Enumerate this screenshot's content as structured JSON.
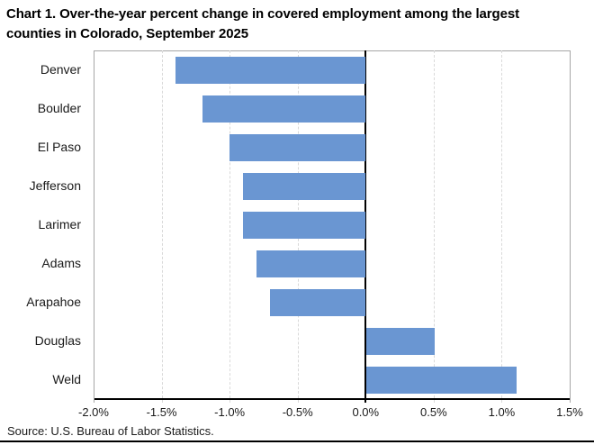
{
  "chart_data": {
    "type": "bar",
    "orientation": "horizontal",
    "title": "Chart 1. Over-the-year percent change in covered employment among the largest counties in Colorado, September 2025",
    "categories": [
      "Denver",
      "Boulder",
      "El Paso",
      "Jefferson",
      "Larimer",
      "Adams",
      "Arapahoe",
      "Douglas",
      "Weld"
    ],
    "values": [
      -1.4,
      -1.2,
      -1.0,
      -0.9,
      -0.9,
      -0.8,
      -0.7,
      0.5,
      1.1
    ],
    "unit": "percent",
    "xlabel": "",
    "ylabel": "",
    "xlim": [
      -2.0,
      1.5
    ],
    "x_tick_step": 0.5,
    "x_tick_labels": [
      "-2.0%",
      "-1.5%",
      "-1.0%",
      "-0.5%",
      "0.0%",
      "0.5%",
      "1.0%",
      "1.5%"
    ],
    "grid": "vertical-dashed",
    "legend": "none",
    "colors": {
      "bar": "#6a96d2",
      "gridline": "#d9d9d9",
      "plot_border": "#a6a6a6",
      "zero_axis": "#000000",
      "text": "#1a1a1a"
    },
    "source": "Source: U.S. Bureau of Labor Statistics."
  }
}
